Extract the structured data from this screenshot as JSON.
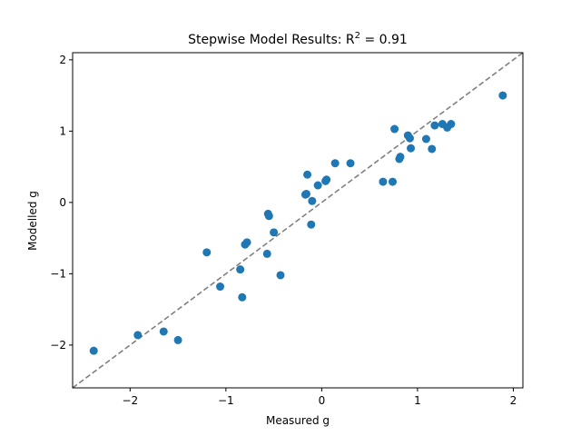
{
  "chart_data": {
    "type": "scatter",
    "title": "Stepwise Model Results: R",
    "title_superscript": "2",
    "title_suffix": " = 0.91",
    "xlabel": "Measured g",
    "ylabel": "Modelled g",
    "xlim": [
      -2.6,
      2.1
    ],
    "ylim": [
      -2.6,
      2.1
    ],
    "xticks": [
      -2,
      -1,
      0,
      1,
      2
    ],
    "yticks": [
      -2,
      -1,
      0,
      1,
      2
    ],
    "xtick_labels": [
      "−2",
      "−1",
      "0",
      "1",
      "2"
    ],
    "ytick_labels": [
      "−2",
      "−1",
      "0",
      "1",
      "2"
    ],
    "grid": false,
    "reference_line": {
      "style": "dashed",
      "color": "#808080",
      "slope": 1,
      "intercept": 0
    },
    "marker_color": "#1f77b4",
    "points": [
      [
        -2.38,
        -2.08
      ],
      [
        -1.92,
        -1.86
      ],
      [
        -1.65,
        -1.81
      ],
      [
        -1.5,
        -1.93
      ],
      [
        -1.2,
        -0.7
      ],
      [
        -1.06,
        -1.18
      ],
      [
        -0.85,
        -0.94
      ],
      [
        -0.83,
        -1.33
      ],
      [
        -0.8,
        -0.59
      ],
      [
        -0.78,
        -0.56
      ],
      [
        -0.57,
        -0.72
      ],
      [
        -0.56,
        -0.16
      ],
      [
        -0.55,
        -0.19
      ],
      [
        -0.5,
        -0.42
      ],
      [
        -0.43,
        -1.02
      ],
      [
        -0.17,
        0.11
      ],
      [
        -0.16,
        0.12
      ],
      [
        -0.15,
        0.39
      ],
      [
        -0.1,
        0.02
      ],
      [
        -0.11,
        -0.31
      ],
      [
        -0.04,
        0.24
      ],
      [
        0.04,
        0.3
      ],
      [
        0.05,
        0.32
      ],
      [
        0.14,
        0.55
      ],
      [
        0.3,
        0.55
      ],
      [
        0.64,
        0.29
      ],
      [
        0.74,
        0.29
      ],
      [
        0.76,
        1.03
      ],
      [
        0.81,
        0.61
      ],
      [
        0.82,
        0.64
      ],
      [
        0.9,
        0.94
      ],
      [
        0.92,
        0.9
      ],
      [
        0.93,
        0.76
      ],
      [
        1.09,
        0.89
      ],
      [
        1.15,
        0.75
      ],
      [
        1.18,
        1.08
      ],
      [
        1.26,
        1.1
      ],
      [
        1.31,
        1.05
      ],
      [
        1.35,
        1.1
      ],
      [
        1.89,
        1.5
      ]
    ]
  }
}
